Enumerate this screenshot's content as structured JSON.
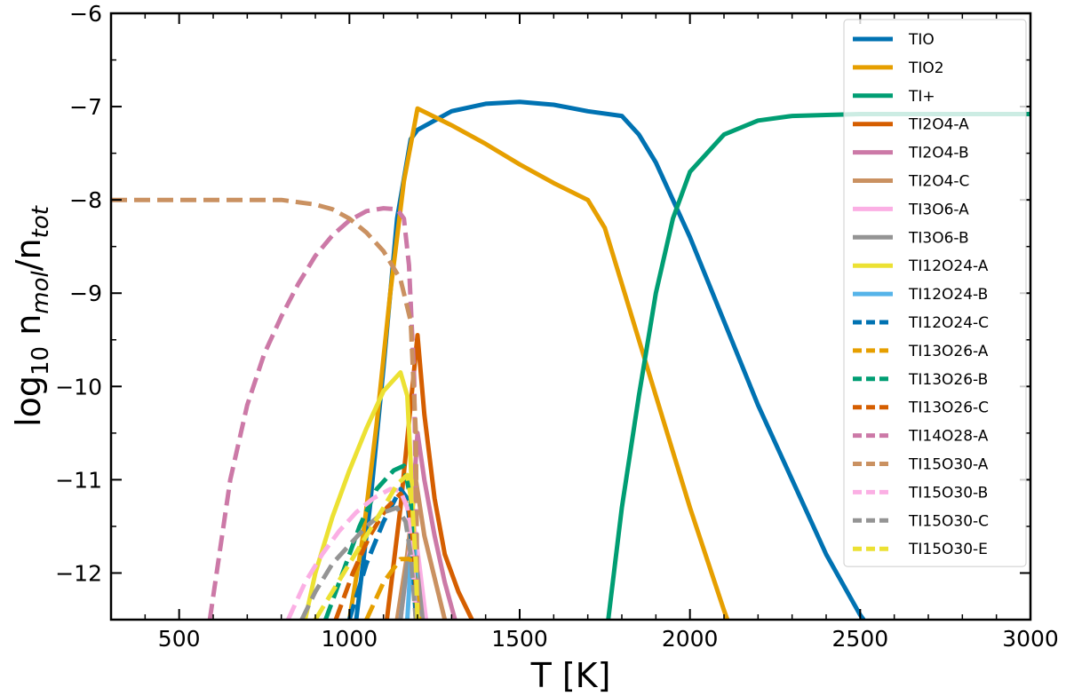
{
  "chart_data": {
    "type": "line",
    "xlabel": "T [K]",
    "ylabel": {
      "prefix": "log",
      "prefix_sub": "10",
      "main": " n",
      "main_sub": "mol",
      "slash": "/n",
      "denominator_sub": "tot"
    },
    "xlim": [
      300,
      3000
    ],
    "ylim": [
      -12.5,
      -6
    ],
    "xticks": [
      500,
      1000,
      1500,
      2000,
      2500,
      3000
    ],
    "xtick_labels": [
      "500",
      "1000",
      "1500",
      "2000",
      "2500",
      "3000"
    ],
    "yticks": [
      -12,
      -11,
      -10,
      -9,
      -8,
      -7,
      -6
    ],
    "ytick_labels": [
      "−12",
      "−11",
      "−10",
      "−9",
      "−8",
      "−7",
      "−6"
    ],
    "grid": false,
    "legend_position": "top-right",
    "series": [
      {
        "name": "TIO",
        "color": "#0072b2",
        "dash": "solid",
        "x": [
          1020,
          1060,
          1100,
          1140,
          1180,
          1200,
          1300,
          1400,
          1500,
          1600,
          1700,
          1800,
          1850,
          1900,
          2000,
          2100,
          2200,
          2300,
          2400,
          2500,
          2510
        ],
        "y": [
          -12.5,
          -11.3,
          -9.8,
          -8.2,
          -7.35,
          -7.25,
          -7.05,
          -6.97,
          -6.95,
          -6.98,
          -7.05,
          -7.1,
          -7.3,
          -7.6,
          -8.4,
          -9.3,
          -10.2,
          -11.0,
          -11.8,
          -12.45,
          -12.5
        ]
      },
      {
        "name": "TIO2",
        "color": "#e69f00",
        "dash": "solid",
        "x": [
          1000,
          1040,
          1080,
          1120,
          1160,
          1200,
          1300,
          1400,
          1500,
          1600,
          1700,
          1750,
          1800,
          1900,
          2000,
          2100,
          2110
        ],
        "y": [
          -12.5,
          -11.6,
          -10.4,
          -9.0,
          -7.8,
          -7.02,
          -7.2,
          -7.4,
          -7.62,
          -7.82,
          -8.0,
          -8.3,
          -8.9,
          -10.1,
          -11.3,
          -12.4,
          -12.5
        ]
      },
      {
        "name": "TI+",
        "color": "#009e73",
        "dash": "solid",
        "x": [
          1760,
          1800,
          1850,
          1900,
          1950,
          2000,
          2100,
          2200,
          2300,
          2400,
          2500,
          2700,
          3000
        ],
        "y": [
          -12.5,
          -11.3,
          -10.1,
          -9.0,
          -8.2,
          -7.7,
          -7.3,
          -7.15,
          -7.1,
          -7.09,
          -7.08,
          -7.08,
          -7.08
        ]
      },
      {
        "name": "TI2O4-A",
        "color": "#d55e00",
        "dash": "solid",
        "x": [
          1110,
          1150,
          1180,
          1200,
          1220,
          1250,
          1280,
          1320,
          1360
        ],
        "y": [
          -12.5,
          -11.3,
          -10.2,
          -9.45,
          -10.3,
          -11.2,
          -11.8,
          -12.2,
          -12.5
        ]
      },
      {
        "name": "TI2O4-B",
        "color": "#cc79a7",
        "dash": "solid",
        "x": [
          1150,
          1180,
          1200,
          1220,
          1250,
          1280,
          1310
        ],
        "y": [
          -12.5,
          -11.6,
          -10.5,
          -11.0,
          -11.6,
          -12.1,
          -12.5
        ]
      },
      {
        "name": "TI2O4-C",
        "color": "#ca9161",
        "dash": "solid",
        "x": [
          1140,
          1170,
          1195,
          1220,
          1260,
          1280
        ],
        "y": [
          -12.5,
          -11.8,
          -11.0,
          -11.6,
          -12.2,
          -12.5
        ]
      },
      {
        "name": "TI3O6-A",
        "color": "#fbafe4",
        "dash": "solid",
        "x": [
          1150,
          1175,
          1190,
          1205,
          1225
        ],
        "y": [
          -12.5,
          -11.8,
          -11.5,
          -11.9,
          -12.5
        ]
      },
      {
        "name": "TI3O6-B",
        "color": "#949494",
        "dash": "solid",
        "x": [
          1150,
          1170,
          1185,
          1200,
          1215
        ],
        "y": [
          -12.5,
          -11.9,
          -11.7,
          -12.0,
          -12.5
        ]
      },
      {
        "name": "TI12O24-A",
        "color": "#ece133",
        "dash": "solid",
        "x": [
          870,
          900,
          950,
          1000,
          1050,
          1100,
          1150,
          1170,
          1185,
          1200
        ],
        "y": [
          -12.5,
          -12.0,
          -11.4,
          -10.9,
          -10.45,
          -10.05,
          -9.85,
          -10.1,
          -11.2,
          -12.5
        ]
      },
      {
        "name": "TI12O24-B",
        "color": "#56b4e9",
        "dash": "solid",
        "x": [
          1170,
          1180,
          1190,
          1200
        ],
        "y": [
          -12.5,
          -11.9,
          -11.6,
          -12.5
        ]
      },
      {
        "name": "TI12O24-C",
        "color": "#0072b2",
        "dash": "dashed",
        "x": [
          1000,
          1050,
          1100,
          1150,
          1170,
          1185,
          1195
        ],
        "y": [
          -12.5,
          -11.9,
          -11.45,
          -11.1,
          -11.2,
          -11.8,
          -12.5
        ]
      },
      {
        "name": "TI13O26-A",
        "color": "#e69f00",
        "dash": "dashed",
        "x": [
          1050,
          1100,
          1150,
          1180,
          1195,
          1205
        ],
        "y": [
          -12.5,
          -12.1,
          -11.85,
          -11.85,
          -12.1,
          -12.5
        ]
      },
      {
        "name": "TI13O26-B",
        "color": "#009e73",
        "dash": "dashed",
        "x": [
          930,
          980,
          1030,
          1080,
          1130,
          1160,
          1180,
          1195
        ],
        "y": [
          -12.5,
          -12.0,
          -11.5,
          -11.1,
          -10.9,
          -10.85,
          -11.2,
          -12.5
        ]
      },
      {
        "name": "TI13O26-C",
        "color": "#d55e00",
        "dash": "dashed",
        "x": [
          960,
          1010,
          1060,
          1110,
          1150,
          1175,
          1190,
          1200
        ],
        "y": [
          -12.5,
          -12.0,
          -11.6,
          -11.3,
          -11.15,
          -11.3,
          -11.8,
          -12.5
        ]
      },
      {
        "name": "TI14O28-A",
        "color": "#cc79a7",
        "dash": "dashed",
        "x": [
          590,
          650,
          700,
          750,
          800,
          850,
          900,
          950,
          1000,
          1050,
          1100,
          1140,
          1160,
          1175,
          1190,
          1200
        ],
        "y": [
          -12.5,
          -11.0,
          -10.2,
          -9.65,
          -9.25,
          -8.9,
          -8.6,
          -8.38,
          -8.22,
          -8.12,
          -8.09,
          -8.1,
          -8.2,
          -8.7,
          -9.9,
          -12.5
        ]
      },
      {
        "name": "TI15O30-A",
        "color": "#ca9161",
        "dash": "dashed",
        "x": [
          300,
          400,
          500,
          600,
          700,
          800,
          900,
          950,
          1000,
          1050,
          1100,
          1150,
          1180,
          1195,
          1200
        ],
        "y": [
          -8.0,
          -8.0,
          -8.0,
          -8.0,
          -8.0,
          -8.0,
          -8.05,
          -8.1,
          -8.2,
          -8.35,
          -8.55,
          -8.85,
          -9.3,
          -10.5,
          -12.5
        ]
      },
      {
        "name": "TI15O30-B",
        "color": "#fbafe4",
        "dash": "dashed",
        "x": [
          820,
          870,
          920,
          970,
          1020,
          1070,
          1120,
          1150,
          1170,
          1185,
          1195
        ],
        "y": [
          -12.5,
          -12.1,
          -11.8,
          -11.55,
          -11.35,
          -11.2,
          -11.1,
          -11.12,
          -11.3,
          -11.8,
          -12.5
        ]
      },
      {
        "name": "TI15O30-C",
        "color": "#949494",
        "dash": "dashed",
        "x": [
          860,
          900,
          950,
          1000,
          1050,
          1100,
          1140,
          1165,
          1180,
          1195
        ],
        "y": [
          -12.5,
          -12.2,
          -11.9,
          -11.7,
          -11.5,
          -11.35,
          -11.3,
          -11.45,
          -11.8,
          -12.5
        ]
      },
      {
        "name": "TI15O30-E",
        "color": "#ece133",
        "dash": "dashed",
        "x": [
          900,
          950,
          1000,
          1050,
          1100,
          1140,
          1170,
          1185,
          1195,
          1200
        ],
        "y": [
          -12.5,
          -12.2,
          -11.9,
          -11.6,
          -11.3,
          -11.05,
          -10.95,
          -11.3,
          -11.9,
          -12.5
        ]
      }
    ]
  }
}
